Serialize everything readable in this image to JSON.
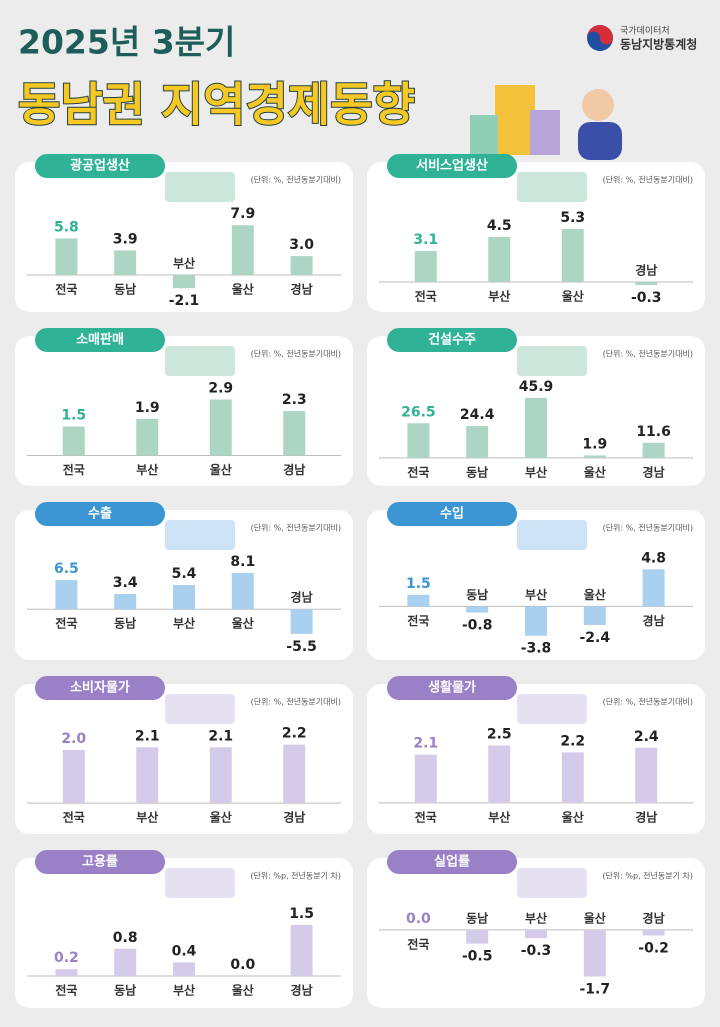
{
  "header": {
    "subtitle": "2025년 3분기",
    "title": "동남권 지역경제동향",
    "org_top": "국가데이터처",
    "org": "동남지방통계청"
  },
  "chart_data": [
    {
      "type": "bar",
      "title": "광공업생산",
      "unit": "(단위: %, 전년동분기대비)",
      "categories": [
        "전국",
        "동남",
        "부산",
        "울산",
        "경남"
      ],
      "values": [
        5.8,
        3.9,
        -2.1,
        7.9,
        3.0
      ],
      "value_labels": [
        "5.8",
        "3.9",
        "-2.1",
        "7.9",
        "3.0"
      ],
      "ylim": [
        -3.5,
        10
      ],
      "color": "#acd6c3",
      "accent_color": "#2fb296"
    },
    {
      "type": "bar",
      "title": "서비스업생산",
      "unit": "(단위: %, 전년동분기대비)",
      "categories": [
        "전국",
        "부산",
        "울산",
        "경남"
      ],
      "values": [
        3.1,
        4.5,
        5.3,
        -0.3
      ],
      "value_labels": [
        "3.1",
        "4.5",
        "5.3",
        "-0.3"
      ],
      "ylim": [
        -1.5,
        7
      ],
      "color": "#acd6c3",
      "accent_color": "#2fb296"
    },
    {
      "type": "bar",
      "title": "소매판매",
      "unit": "(단위: %, 전년동분기대비)",
      "categories": [
        "전국",
        "부산",
        "울산",
        "경남"
      ],
      "values": [
        1.5,
        1.9,
        2.9,
        2.3
      ],
      "value_labels": [
        "1.5",
        "1.9",
        "2.9",
        "2.3"
      ],
      "ylim": [
        -0.8,
        3.6
      ],
      "color": "#acd6c3",
      "accent_color": "#2fb296"
    },
    {
      "type": "bar",
      "title": "건설수주",
      "unit": "(단위: %, 전년동분기대비)",
      "categories": [
        "전국",
        "동남",
        "부산",
        "울산",
        "경남"
      ],
      "values": [
        26.5,
        24.4,
        45.9,
        1.9,
        11.6
      ],
      "value_labels": [
        "26.5",
        "24.4",
        "45.9",
        "1.9",
        "11.6"
      ],
      "ylim": [
        -10,
        55
      ],
      "color": "#acd6c3",
      "accent_color": "#2fb296"
    },
    {
      "type": "bar",
      "title": "수출",
      "unit": "(단위: %, 전년동분기대비)",
      "categories": [
        "전국",
        "동남",
        "부산",
        "울산",
        "경남"
      ],
      "values": [
        6.5,
        3.4,
        5.4,
        8.1,
        -5.5
      ],
      "value_labels": [
        "6.5",
        "3.4",
        "5.4",
        "8.1",
        "-5.5"
      ],
      "ylim": [
        -8,
        11
      ],
      "color": "#a9d0ef",
      "accent_color": "#3b95d3"
    },
    {
      "type": "bar",
      "title": "수입",
      "unit": "(단위: %, 전년동분기대비)",
      "categories": [
        "전국",
        "동남",
        "부산",
        "울산",
        "경남"
      ],
      "values": [
        1.5,
        -0.8,
        -3.8,
        -2.4,
        4.8
      ],
      "value_labels": [
        "1.5",
        "-0.8",
        "-3.8",
        "-2.4",
        "4.8"
      ],
      "ylim": [
        -5,
        6
      ],
      "color": "#a9d0ef",
      "accent_color": "#3b95d3"
    },
    {
      "type": "bar",
      "title": "소비자물가",
      "unit": "(단위: %, 전년동분기대비)",
      "categories": [
        "전국",
        "부산",
        "울산",
        "경남"
      ],
      "values": [
        2.0,
        2.1,
        2.1,
        2.2
      ],
      "value_labels": [
        "2.0",
        "2.1",
        "2.1",
        "2.2"
      ],
      "ylim": [
        -0.6,
        2.6
      ],
      "color": "#d4cbea",
      "accent_color": "#9a80c6"
    },
    {
      "type": "bar",
      "title": "생활물가",
      "unit": "(단위: %, 전년동분기대비)",
      "categories": [
        "전국",
        "부산",
        "울산",
        "경남"
      ],
      "values": [
        2.1,
        2.5,
        2.2,
        2.4
      ],
      "value_labels": [
        "2.1",
        "2.5",
        "2.2",
        "2.4"
      ],
      "ylim": [
        -0.7,
        3
      ],
      "color": "#d4cbea",
      "accent_color": "#9a80c6"
    },
    {
      "type": "bar",
      "title": "고용률",
      "unit": "(단위: %p, 전년동분기 차)",
      "categories": [
        "전국",
        "동남",
        "부산",
        "울산",
        "경남"
      ],
      "values": [
        0.2,
        0.8,
        0.4,
        0.0,
        1.5
      ],
      "value_labels": [
        "0.2",
        "0.8",
        "0.4",
        "0.0",
        "1.5"
      ],
      "ylim": [
        -0.5,
        2
      ],
      "color": "#d4cbea",
      "accent_color": "#9a80c6"
    },
    {
      "type": "bar",
      "title": "실업률",
      "unit": "(단위: %p, 전년동분기 차)",
      "categories": [
        "전국",
        "동남",
        "부산",
        "울산",
        "경남"
      ],
      "values": [
        0.0,
        -0.5,
        -0.3,
        -1.7,
        -0.2
      ],
      "value_labels": [
        "0.0",
        "-0.5",
        "-0.3",
        "-1.7",
        "-0.2"
      ],
      "ylim": [
        -2.3,
        0.8
      ],
      "color": "#d4cbea",
      "accent_color": "#9a80c6"
    }
  ]
}
